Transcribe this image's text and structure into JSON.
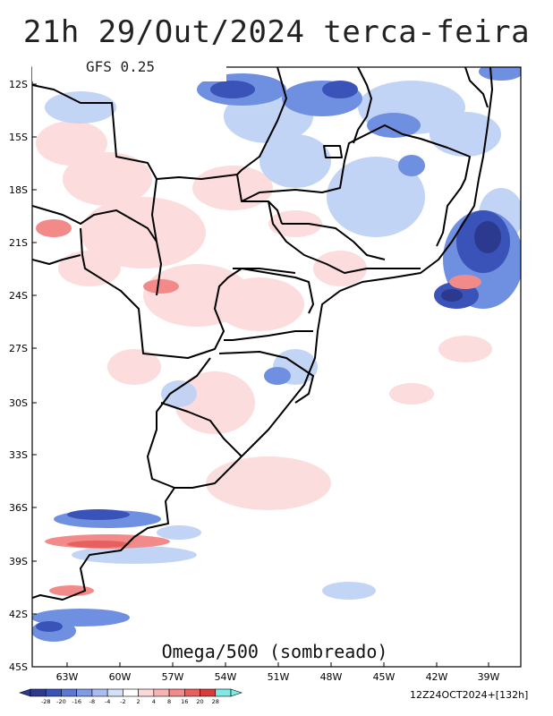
{
  "title": "21h 29/Out/2024 terca-feira",
  "model_label": "GFS 0.25",
  "field_label": "Omega/500 (sombreado)",
  "run_label": "12Z24OCT2024+[132h]",
  "lat_labels": [
    "12S",
    "15S",
    "18S",
    "21S",
    "24S",
    "27S",
    "30S",
    "33S",
    "36S",
    "39S",
    "42S",
    "45S"
  ],
  "lon_labels": [
    "63W",
    "60W",
    "57W",
    "54W",
    "51W",
    "48W",
    "45W",
    "42W",
    "39W"
  ],
  "colorbar": {
    "ticks": [
      "-28",
      "-20",
      "-16",
      "-8",
      "-4",
      "-2",
      "2",
      "4",
      "8",
      "16",
      "20",
      "28"
    ],
    "colors": [
      "#2b3a8f",
      "#3a53b8",
      "#5b78d6",
      "#7f9ae6",
      "#a9bdf2",
      "#d4dff8",
      "#ffffff",
      "#fcd9d9",
      "#f8b3b3",
      "#f28a8a",
      "#e85f5f",
      "#d83b3b",
      "#7fe9e6"
    ]
  },
  "legend": {
    "colors_meaning": "blue = ascending (negative omega), red = descending (positive omega)"
  }
}
